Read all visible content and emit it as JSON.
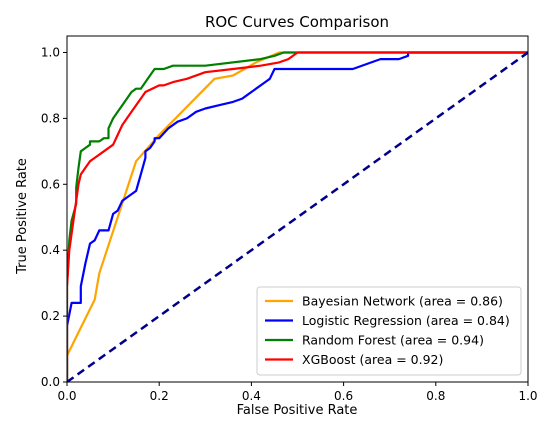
{
  "chart_data": {
    "type": "line",
    "title": "ROC Curves Comparison",
    "xlabel": "False Positive Rate",
    "ylabel": "True Positive Rate",
    "xlim": [
      0,
      1
    ],
    "ylim": [
      0,
      1.05
    ],
    "xticks": [
      "0.0",
      "0.2",
      "0.4",
      "0.6",
      "0.8",
      "1.0"
    ],
    "yticks": [
      "0.0",
      "0.2",
      "0.4",
      "0.6",
      "0.8",
      "1.0"
    ],
    "grid": false,
    "legend_position": "lower-right",
    "series": [
      {
        "name": "Bayesian Network (area = 0.86)",
        "color": "#ffa500",
        "x": [
          0,
          0,
          0.06,
          0.07,
          0.15,
          0.2,
          0.32,
          0.36,
          0.41,
          0.46,
          1.0
        ],
        "y": [
          0,
          0.08,
          0.25,
          0.33,
          0.67,
          0.75,
          0.92,
          0.93,
          0.97,
          1.0,
          1.0
        ]
      },
      {
        "name": "Logistic Regression (area = 0.84)",
        "color": "#0000ff",
        "x": [
          0,
          0,
          0.01,
          0.01,
          0.03,
          0.03,
          0.04,
          0.05,
          0.06,
          0.07,
          0.09,
          0.1,
          0.11,
          0.12,
          0.13,
          0.15,
          0.16,
          0.17,
          0.17,
          0.18,
          0.19,
          0.19,
          0.2,
          0.22,
          0.24,
          0.26,
          0.28,
          0.3,
          0.33,
          0.36,
          0.38,
          0.39,
          0.41,
          0.43,
          0.44,
          0.45,
          0.49,
          0.55,
          0.62,
          0.66,
          0.68,
          0.72,
          0.74,
          0.74,
          1.0
        ],
        "y": [
          0,
          0.17,
          0.24,
          0.24,
          0.24,
          0.29,
          0.36,
          0.42,
          0.43,
          0.46,
          0.46,
          0.51,
          0.52,
          0.55,
          0.56,
          0.58,
          0.63,
          0.68,
          0.7,
          0.71,
          0.73,
          0.74,
          0.74,
          0.77,
          0.79,
          0.8,
          0.82,
          0.83,
          0.84,
          0.85,
          0.86,
          0.87,
          0.89,
          0.91,
          0.92,
          0.95,
          0.95,
          0.95,
          0.95,
          0.97,
          0.98,
          0.98,
          0.99,
          1.0,
          1.0
        ]
      },
      {
        "name": "Random Forest (area = 0.94)",
        "color": "#008000",
        "x": [
          0,
          0,
          0.005,
          0.01,
          0.02,
          0.02,
          0.025,
          0.03,
          0.04,
          0.05,
          0.05,
          0.07,
          0.08,
          0.09,
          0.09,
          0.1,
          0.11,
          0.12,
          0.13,
          0.14,
          0.15,
          0.16,
          0.17,
          0.18,
          0.19,
          0.21,
          0.23,
          0.3,
          0.42,
          0.45,
          0.47,
          1.0
        ],
        "y": [
          0,
          0.29,
          0.43,
          0.49,
          0.54,
          0.59,
          0.65,
          0.7,
          0.71,
          0.72,
          0.73,
          0.73,
          0.74,
          0.74,
          0.77,
          0.8,
          0.82,
          0.84,
          0.86,
          0.88,
          0.89,
          0.89,
          0.91,
          0.93,
          0.95,
          0.95,
          0.96,
          0.96,
          0.98,
          0.99,
          1.0,
          1.0
        ]
      },
      {
        "name": "XGBoost (area = 0.92)",
        "color": "#ff0000",
        "x": [
          0,
          0,
          0.005,
          0.01,
          0.02,
          0.025,
          0.03,
          0.035,
          0.04,
          0.05,
          0.06,
          0.08,
          0.1,
          0.11,
          0.12,
          0.13,
          0.14,
          0.15,
          0.16,
          0.17,
          0.2,
          0.21,
          0.23,
          0.26,
          0.3,
          0.36,
          0.42,
          0.46,
          0.48,
          0.5,
          1.0
        ],
        "y": [
          0,
          0.29,
          0.4,
          0.45,
          0.55,
          0.6,
          0.63,
          0.64,
          0.65,
          0.67,
          0.68,
          0.7,
          0.72,
          0.75,
          0.78,
          0.8,
          0.82,
          0.84,
          0.86,
          0.88,
          0.9,
          0.9,
          0.91,
          0.92,
          0.94,
          0.95,
          0.96,
          0.97,
          0.98,
          1.0,
          1.0
        ]
      },
      {
        "name": "",
        "color": "#00008b",
        "dashed": true,
        "x": [
          0,
          1
        ],
        "y": [
          0,
          1
        ]
      }
    ]
  }
}
